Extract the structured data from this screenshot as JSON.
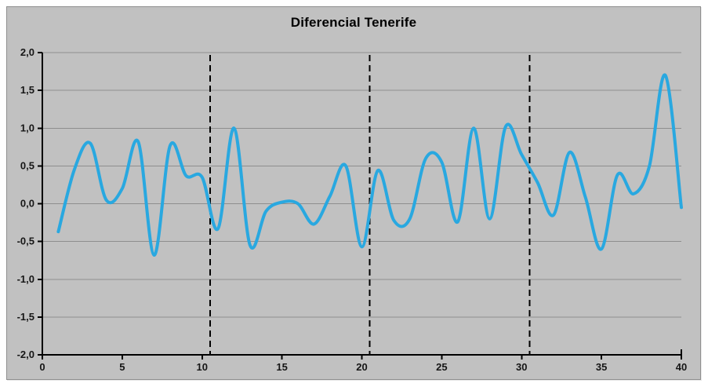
{
  "window": {
    "background": "#ffffff"
  },
  "chart": {
    "panel_bg": "#c1c1c1",
    "panel_border": "#8f8f8f",
    "grid_color": "#8e8e8e",
    "axis_color": "#000000",
    "separator_color": "#000000",
    "label_color": "#161616"
  },
  "chart_data": {
    "type": "line",
    "title": "Diferencial Tenerife",
    "smoothed": true,
    "line_color": "#29a8e0",
    "line_width": 4,
    "grid": true,
    "legend_position": "none",
    "xlim": [
      0,
      40
    ],
    "ylim": [
      -2,
      2
    ],
    "x_ticks": [
      0,
      5,
      10,
      15,
      20,
      25,
      30,
      35,
      40
    ],
    "x_tick_labels": [
      "0",
      "5",
      "10",
      "15",
      "20",
      "25",
      "30",
      "35",
      "40"
    ],
    "y_ticks": [
      2.0,
      1.5,
      1.0,
      0.5,
      0.0,
      -0.5,
      -1.0,
      -1.5,
      -2.0
    ],
    "y_tick_labels": [
      "2,0",
      "1,5",
      "1,0",
      "0,5",
      "0,0",
      "-0,5",
      "-1,0",
      "-1,5",
      "-2,0"
    ],
    "vertical_dashed_lines_x": [
      10.5,
      20.5,
      30.5
    ],
    "x": [
      1,
      2,
      3,
      4,
      5,
      6,
      7,
      8,
      9,
      10,
      11,
      12,
      13,
      14,
      15,
      16,
      17,
      18,
      19,
      20,
      21,
      22,
      23,
      24,
      25,
      26,
      27,
      28,
      29,
      30,
      31,
      32,
      33,
      34,
      35,
      36,
      37,
      38,
      39,
      40
    ],
    "values": [
      -0.37,
      0.45,
      0.8,
      0.05,
      0.2,
      0.82,
      -0.68,
      0.77,
      0.37,
      0.35,
      -0.33,
      1.0,
      -0.55,
      -0.1,
      0.02,
      0.0,
      -0.27,
      0.1,
      0.5,
      -0.57,
      0.44,
      -0.22,
      -0.2,
      0.6,
      0.55,
      -0.24,
      1.0,
      -0.2,
      1.02,
      0.65,
      0.28,
      -0.15,
      0.68,
      0.08,
      -0.6,
      0.38,
      0.13,
      0.5,
      1.7,
      -0.05
    ]
  }
}
